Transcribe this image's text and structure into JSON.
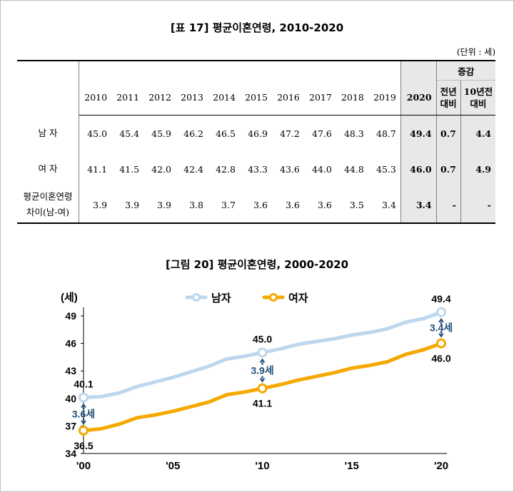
{
  "table": {
    "title": "[표 17] 평균이혼연령, 2010-2020",
    "unit": "(단위 : 세)",
    "years": [
      "2010",
      "2011",
      "2012",
      "2013",
      "2014",
      "2015",
      "2016",
      "2017",
      "2018",
      "2019",
      "2020"
    ],
    "change_header": "증감",
    "change_cols": [
      "전년\n대비",
      "10년전\n대비"
    ],
    "rows": [
      {
        "label": "남 자",
        "values": [
          "45.0",
          "45.4",
          "45.9",
          "46.2",
          "46.5",
          "46.9",
          "47.2",
          "47.6",
          "48.3",
          "48.7",
          "49.4"
        ],
        "change": [
          "0.7",
          "4.4"
        ]
      },
      {
        "label": "여 자",
        "values": [
          "41.1",
          "41.5",
          "42.0",
          "42.4",
          "42.8",
          "43.3",
          "43.6",
          "44.0",
          "44.8",
          "45.3",
          "46.0"
        ],
        "change": [
          "0.7",
          "4.9"
        ]
      },
      {
        "label": "평균이혼연령\n차이(남-여)",
        "values": [
          "3.9",
          "3.9",
          "3.9",
          "3.8",
          "3.7",
          "3.6",
          "3.6",
          "3.6",
          "3.5",
          "3.4",
          "3.4"
        ],
        "change": [
          "-",
          "-"
        ]
      }
    ]
  },
  "figure": {
    "title": "[그림 20] 평균이혼연령, 2000-2020"
  },
  "chart_data": {
    "type": "line",
    "title": "[그림 20] 평균이혼연령, 2000-2020",
    "ylabel": "(세)",
    "ylim": [
      34,
      49
    ],
    "yticks": [
      34,
      37,
      40,
      43,
      46,
      49
    ],
    "xticks": [
      "'00",
      "'05",
      "'10",
      "'15",
      "'20"
    ],
    "x": [
      2000,
      2001,
      2002,
      2003,
      2004,
      2005,
      2006,
      2007,
      2008,
      2009,
      2010,
      2011,
      2012,
      2013,
      2014,
      2015,
      2016,
      2017,
      2018,
      2019,
      2020
    ],
    "grid": false,
    "legend": "top-center",
    "series": [
      {
        "name": "남자",
        "color": "#bdd7ee",
        "values": [
          40.1,
          40.2,
          40.6,
          41.3,
          41.8,
          42.3,
          42.9,
          43.5,
          44.3,
          44.6,
          45.0,
          45.4,
          45.9,
          46.2,
          46.5,
          46.9,
          47.2,
          47.6,
          48.3,
          48.7,
          49.4
        ]
      },
      {
        "name": "여자",
        "color": "#f5a800",
        "values": [
          36.5,
          36.7,
          37.2,
          37.9,
          38.2,
          38.6,
          39.1,
          39.6,
          40.4,
          40.7,
          41.1,
          41.5,
          42.0,
          42.4,
          42.8,
          43.3,
          43.6,
          44.0,
          44.8,
          45.3,
          46.0
        ]
      }
    ],
    "annotations": [
      {
        "x": 2000,
        "top_label": "40.1",
        "bottom_label": "36.5",
        "gap_label": "3.6세"
      },
      {
        "x": 2010,
        "top_label": "45.0",
        "bottom_label": "41.1",
        "gap_label": "3.9세"
      },
      {
        "x": 2020,
        "top_label": "49.4",
        "bottom_label": "46.0",
        "gap_label": "3.4세"
      }
    ],
    "annotation_color": "#1f4e79"
  }
}
